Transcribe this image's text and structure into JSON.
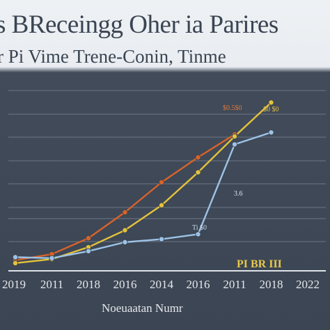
{
  "chart_data": {
    "type": "line",
    "title": "s BReceingg Oher ia Parires",
    "subtitle": "r Pi Vime Trene-Conin, Tinme",
    "xlabel": "Noeuaatan Numr",
    "ylabel": "",
    "categories": [
      "2019",
      "2011",
      "2018",
      "2016",
      "2014",
      "2016",
      "2011",
      "2018",
      "2022"
    ],
    "grid": true,
    "legend_text": "PI BR III",
    "annotations": [
      "$0.5$0",
      "$0 $0",
      "3.6",
      "Ti $0"
    ],
    "series": [
      {
        "color": "#d8632a",
        "values": [
          0,
          0.6,
          2.2,
          4.8,
          7.8,
          10.3,
          12.6,
          null,
          null
        ]
      },
      {
        "color": "#e4c23b",
        "values": [
          -0.3,
          0.1,
          1.3,
          3.0,
          5.5,
          8.8,
          12.4,
          15.8,
          null
        ]
      },
      {
        "color": "#9ec3e6",
        "values": [
          0.3,
          0.2,
          0.9,
          1.8,
          2.1,
          2.6,
          11.6,
          12.8,
          null
        ]
      }
    ],
    "colors": {
      "grid": "#6d7684",
      "baseline": "#dfe3e8"
    }
  }
}
